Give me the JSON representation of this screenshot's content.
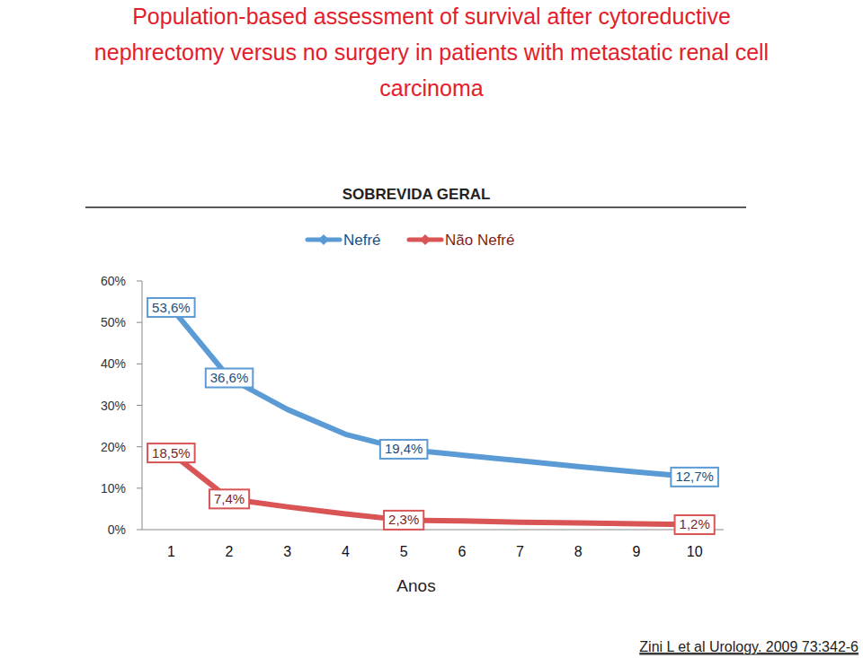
{
  "header": {
    "title_lines": [
      "Population-based assessment of survival after cytoreductive",
      "nephrectomy versus no surgery in patients with metastatic renal cell",
      "carcinoma"
    ]
  },
  "chart_data": {
    "type": "line",
    "title": "SOBREVIDA GERAL",
    "x_label": "Anos",
    "categories": [
      "1",
      "2",
      "3",
      "4",
      "5",
      "6",
      "7",
      "8",
      "9",
      "10"
    ],
    "series": [
      {
        "name": "Nefré",
        "color": "#5b9bd5",
        "values": [
          53.6,
          36.6,
          29,
          23,
          19.4,
          18,
          16.6,
          15.2,
          13.9,
          12.7
        ],
        "value_labels": [
          "53,6%",
          "36,6%",
          null,
          null,
          "19,4%",
          null,
          null,
          null,
          null,
          "12,7%"
        ]
      },
      {
        "name": "Não Nefré",
        "color": "#d95454",
        "values": [
          18.5,
          7.4,
          5.5,
          3.8,
          2.3,
          2.1,
          1.8,
          1.6,
          1.4,
          1.2
        ],
        "value_labels": [
          "18,5%",
          "7,4%",
          null,
          null,
          "2,3%",
          null,
          null,
          null,
          null,
          "1,2%"
        ]
      }
    ],
    "ylim": [
      0,
      60
    ],
    "yticks": [
      {
        "value": 0,
        "label": "0%"
      },
      {
        "value": 10,
        "label": "10%"
      },
      {
        "value": 20,
        "label": "20%"
      },
      {
        "value": 30,
        "label": "30%"
      },
      {
        "value": 40,
        "label": "40%"
      },
      {
        "value": 50,
        "label": "50%"
      },
      {
        "value": 60,
        "label": "60%"
      }
    ],
    "grid": false,
    "legend": "top",
    "data_labels": true
  },
  "source": "Zini L et al Urology. 2009 73:342-6"
}
